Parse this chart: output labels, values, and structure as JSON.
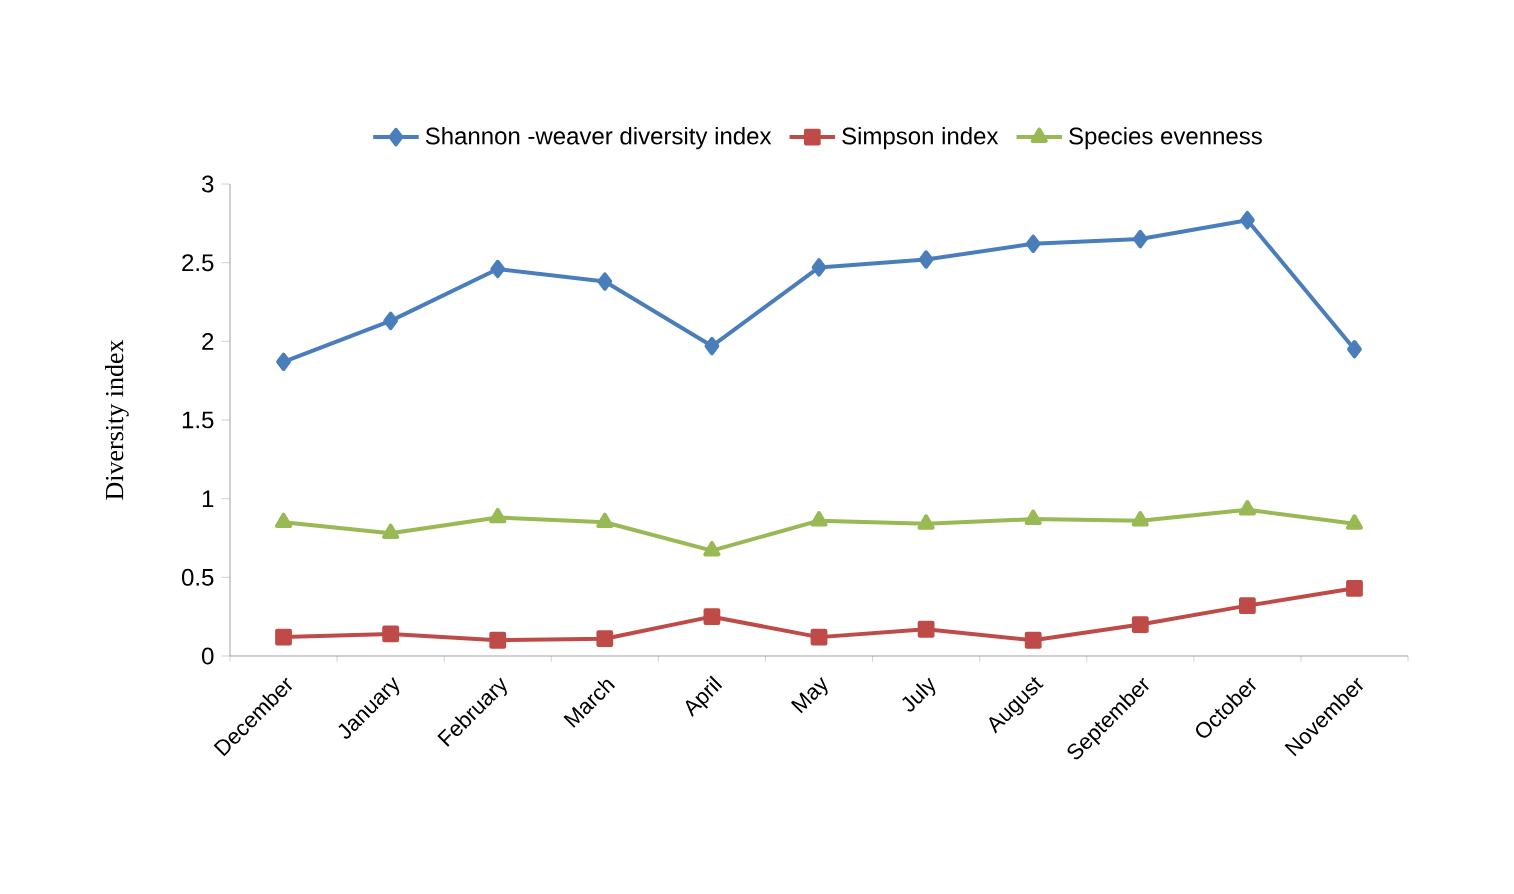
{
  "chart_data": {
    "type": "line",
    "ylabel": "Diversity index",
    "categories": [
      "December",
      "January",
      "February",
      "March",
      "April",
      "May",
      "July",
      "August",
      "September",
      "October",
      "November"
    ],
    "series": [
      {
        "name": "Shannon -weaver diversity index",
        "color": "#4a7ebb",
        "marker": "diamond",
        "values": [
          1.87,
          2.13,
          2.46,
          2.38,
          1.97,
          2.47,
          2.52,
          2.62,
          2.65,
          2.77,
          1.95
        ]
      },
      {
        "name": "Simpson index",
        "color": "#be4b48",
        "marker": "square",
        "values": [
          0.12,
          0.14,
          0.1,
          0.11,
          0.25,
          0.12,
          0.17,
          0.1,
          0.2,
          0.32,
          0.43
        ]
      },
      {
        "name": "Species evenness",
        "color": "#98b954",
        "marker": "triangle",
        "values": [
          0.85,
          0.78,
          0.88,
          0.85,
          0.67,
          0.86,
          0.84,
          0.87,
          0.86,
          0.93,
          0.84
        ]
      }
    ],
    "ylim": [
      0,
      3
    ],
    "yticks": [
      0,
      0.5,
      1,
      1.5,
      2,
      2.5,
      3
    ],
    "grid": false,
    "legend": "top",
    "line_style": "solid"
  }
}
